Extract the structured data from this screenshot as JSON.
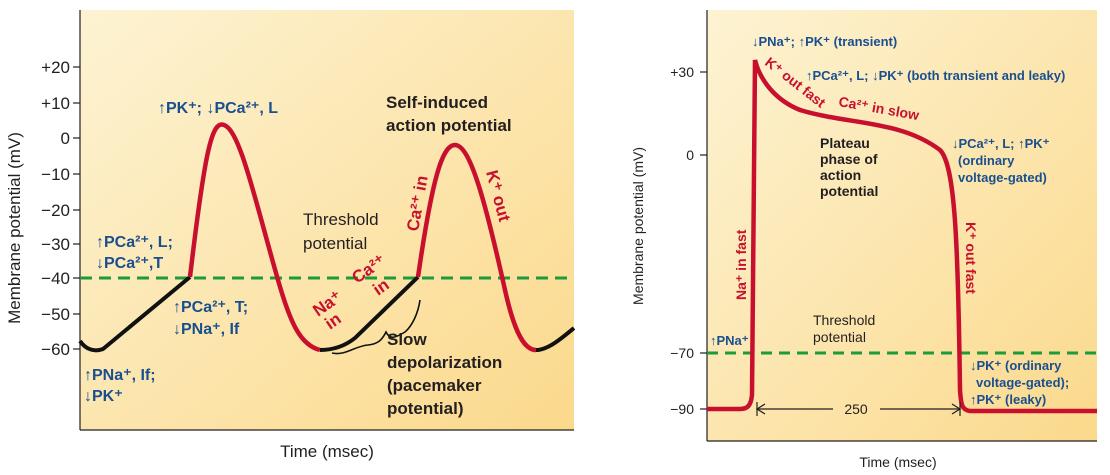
{
  "left": {
    "y_ticks": [
      "+20",
      "+10",
      "0",
      "−10",
      "−20",
      "−30",
      "−40",
      "−50",
      "−60"
    ],
    "ylabel": "Membrane potential (mV)",
    "xlabel": "Time (msec)",
    "threshold_label": [
      "Threshold",
      "potential"
    ],
    "self_induced_label": [
      "Self-induced",
      "action potential"
    ],
    "slow_depol_label": [
      "Slow",
      "depolarization",
      "(pacemaker",
      "potential)"
    ],
    "ion": {
      "na_in": [
        "Na⁺",
        "in"
      ],
      "ca_in_small": [
        "Ca²⁺",
        "in"
      ],
      "ca_in_rise": "Ca²⁺ in",
      "k_out": "K⁺ out"
    },
    "perm": {
      "top": "↑PK⁺; ↓PCa²⁺, L",
      "upper_left_1": "↑PCa²⁺, L;",
      "upper_left_2": "↓PCa²⁺,T",
      "mid_1": "↑PCa²⁺, T;",
      "mid_2": "↓PNa⁺, If",
      "bottom_1": "↑PNa⁺, If;",
      "bottom_2": "↓PK⁺"
    }
  },
  "right": {
    "y_ticks": [
      "+30",
      "0",
      "−70",
      "−90"
    ],
    "ylabel": "Membrane potential (mV)",
    "xlabel": "Time (msec)",
    "duration_label": "250",
    "threshold_label": [
      "Threshold",
      "potential"
    ],
    "plateau_label": [
      "Plateau",
      "phase of",
      "action",
      "potential"
    ],
    "ion": {
      "na_in_fast": "Na⁺ in fast",
      "k_out_fast_top": "K⁺ out fast",
      "ca_in_slow": "Ca²⁺ in slow",
      "k_out_fast_right": "K⁺ out fast"
    },
    "perm": {
      "top": "↓PNa⁺; ↑PK⁺ (transient)",
      "second": "↑PCa²⁺, L; ↓PK⁺ (both transient and leaky)",
      "right_1": "↓PCa²⁺, L; ↑PK⁺",
      "right_2": "(ordinary",
      "right_3": "voltage-gated)",
      "na": "↑PNa⁺",
      "bottom_1": "↓PK⁺ (ordinary",
      "bottom_2": "voltage-gated);",
      "bottom_3": "↑PK⁺ (leaky)"
    }
  },
  "colors": {
    "trace_red": "#c8102e",
    "trace_black": "#111111",
    "threshold_green": "#1d9a3a",
    "label_blue": "#1a4f8f",
    "bg_warm": "#fbe4a4"
  }
}
